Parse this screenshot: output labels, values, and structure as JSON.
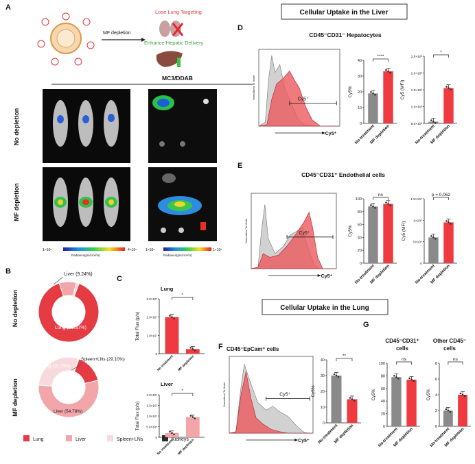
{
  "colors": {
    "red": "#ef3a3f",
    "grey": "#8a8a8a",
    "lung": "#e53b43",
    "liver": "#f3a6aa",
    "spleen": "#f9dadc",
    "kidneys": "#2b2b2b"
  },
  "panelA": {
    "letter": "A",
    "lose_lung": "Lose Lung Targeting",
    "enhance_hepatic": "Enhance Hepatic Delivery",
    "arrow_label": "MF depletion",
    "formulation": "MC3/DDAB",
    "row1": "No depletion",
    "row2": "MF depletion",
    "scale_left_min": "1×10⁶",
    "scale_left_max": "4×10⁶",
    "scale_right_min": "1×10⁶",
    "scale_right_max": "1×10⁸",
    "radiance_label": "Radiance(p/s/cm²/sr)"
  },
  "panelB": {
    "letter": "B",
    "row1": "No depletion",
    "row2": "MF depletion",
    "donut1": {
      "lung_label": "Lung (89.37%)",
      "liver_label": "Liver (9.24%)",
      "slices": [
        89.37,
        9.24,
        1.39
      ]
    },
    "donut2": {
      "lung_label": "Lung (15.75%)",
      "liver_label": "Liver (54.78%)",
      "spleen_label": "Spleen+LNs (29.10%)",
      "slices": [
        15.75,
        54.78,
        29.1,
        0.37
      ]
    },
    "legend": [
      "Lung",
      "Liver",
      "Spleen+LNs",
      "Kidneys"
    ]
  },
  "panelC": {
    "letter": "C",
    "lung_title": "Lung",
    "liver_title": "Liver",
    "ylabel": "Total Flux (p/s)",
    "lung_ticks": [
      "0",
      "1.0×10⁷",
      "2.0×10⁷",
      "3.0×10⁷"
    ],
    "liver_ticks": [
      "0",
      "5.0×10⁶",
      "1.0×10⁷",
      "1.5×10⁷",
      "2.0×10⁷"
    ],
    "sig": "*",
    "categories": [
      "No treatment",
      "MF depletion"
    ]
  },
  "liver_header": "Cellular Uptake in the Liver",
  "lung_header": "Cellular Uptake in the Lung",
  "panelD": {
    "letter": "D",
    "title": "CD45⁻CD31⁻ Hepatocytes",
    "hist_ylabel": "Normalized To Mode",
    "gate": "Cy5⁺",
    "xaxis": "Cy5⁺",
    "bar1_ylabel": "Cy5%",
    "bar1_ticks": [
      "0",
      "10",
      "20",
      "30",
      "40"
    ],
    "bar1_sig": "****",
    "bar2_ylabel": "Cy5 (MFI)",
    "bar2_ticks": [
      "5.0×10²",
      "1.0×10³",
      "1.5×10³",
      "2.0×10³",
      "2.5×10³"
    ],
    "bar2_sig": "*",
    "categories": [
      "No-treatment",
      "MF depletion"
    ]
  },
  "panelE": {
    "letter": "E",
    "title": "CD45⁻CD31⁺ Endothelial cells",
    "hist_ylabel": "Normalized To Mode",
    "gate": "Cy5⁺",
    "xaxis": "Cy5⁺",
    "bar1_ylabel": "Cy5%",
    "bar1_ticks": [
      "0",
      "20",
      "40",
      "60",
      "80",
      "100"
    ],
    "bar1_sig": "ns",
    "bar2_ylabel": "Cy5 (MFI)",
    "bar2_ticks": [
      "0",
      "5×10⁴",
      "1×10⁵",
      "1.5×10⁵"
    ],
    "bar2_sig": "p = 0.062",
    "categories": [
      "No-treatment",
      "MF depletion"
    ]
  },
  "panelF": {
    "letter": "F",
    "title": "CD45⁻EpCam⁺ cells",
    "hist_ylabel": "Normalized To Mode",
    "gate": "Cy5⁺",
    "xaxis": "Cy5⁺",
    "bar_ylabel": "Cy5%",
    "bar_ticks": [
      "0",
      "10",
      "20",
      "30",
      "40"
    ],
    "bar_sig": "**",
    "categories": [
      "No-treatment",
      "MF depletion"
    ]
  },
  "panelG": {
    "letter": "G",
    "title1a": "CD45⁻CD31⁺",
    "title1b": "cells",
    "title2a": "Other CD45⁻",
    "title2b": "cells",
    "bar1_ylabel": "Cy5%",
    "bar1_ticks": [
      "0",
      "20",
      "40",
      "60",
      "80",
      "100"
    ],
    "bar1_sig": "ns",
    "bar2_ylabel": "Cy5%",
    "bar2_ticks": [
      "0",
      "2",
      "4",
      "6",
      "8"
    ],
    "bar2_sig": "ns",
    "categories": [
      "No-treatment",
      "MF depletion"
    ]
  },
  "chart_data": [
    {
      "type": "bar",
      "panel": "C-Lung",
      "categories": [
        "No treatment",
        "MF depletion"
      ],
      "values": [
        20000000,
        2500000
      ],
      "ylim": [
        0,
        30000000
      ]
    },
    {
      "type": "bar",
      "panel": "C-Liver",
      "categories": [
        "No treatment",
        "MF depletion"
      ],
      "values": [
        2000000,
        9500000
      ],
      "ylim": [
        0,
        20000000
      ]
    },
    {
      "type": "bar",
      "panel": "D-Cy5%",
      "categories": [
        "No-treatment",
        "MF depletion"
      ],
      "values": [
        19,
        33
      ],
      "ylim": [
        0,
        40
      ]
    },
    {
      "type": "bar",
      "panel": "D-MFI",
      "categories": [
        "No-treatment",
        "MF depletion"
      ],
      "values": [
        550,
        1550
      ],
      "ylim": [
        500,
        2500
      ]
    },
    {
      "type": "bar",
      "panel": "E-Cy5%",
      "categories": [
        "No-treatment",
        "MF depletion"
      ],
      "values": [
        88,
        92
      ],
      "ylim": [
        0,
        100
      ]
    },
    {
      "type": "bar",
      "panel": "E-MFI",
      "categories": [
        "No-treatment",
        "MF depletion"
      ],
      "values": [
        60000,
        95000
      ],
      "ylim": [
        0,
        150000
      ]
    },
    {
      "type": "bar",
      "panel": "F-Cy5%",
      "categories": [
        "No-treatment",
        "MF depletion"
      ],
      "values": [
        30,
        15
      ],
      "ylim": [
        0,
        40
      ]
    },
    {
      "type": "bar",
      "panel": "G-CD31",
      "categories": [
        "No-treatment",
        "MF depletion"
      ],
      "values": [
        78,
        74
      ],
      "ylim": [
        0,
        100
      ]
    },
    {
      "type": "bar",
      "panel": "G-Other",
      "categories": [
        "No-treatment",
        "MF depletion"
      ],
      "values": [
        2,
        4
      ],
      "ylim": [
        0,
        8
      ]
    }
  ]
}
